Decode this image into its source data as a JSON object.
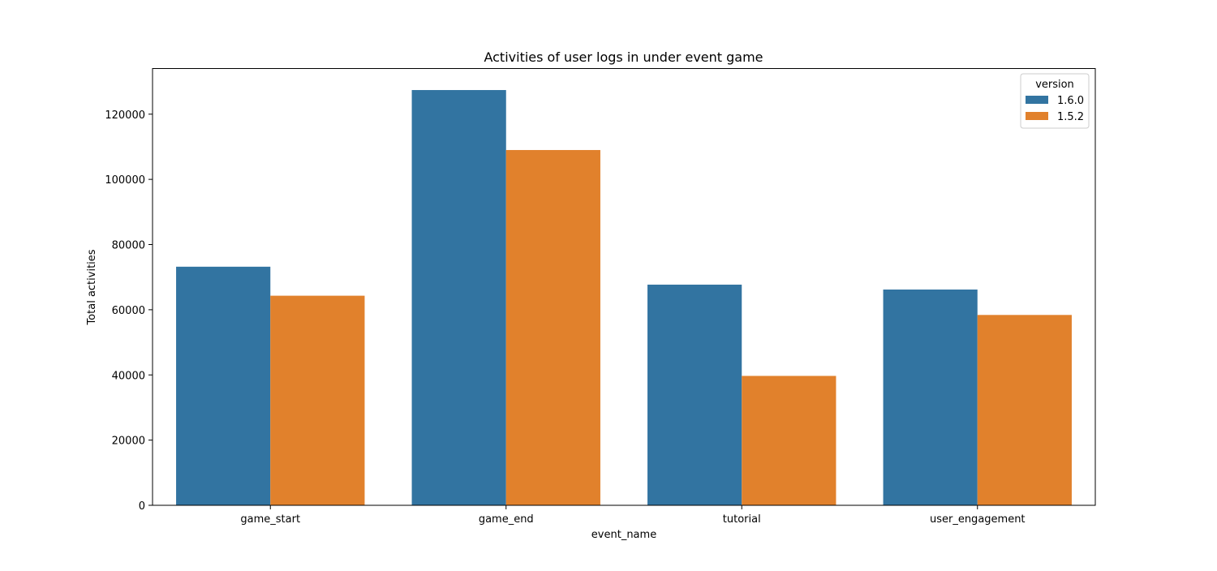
{
  "chart_data": {
    "type": "bar",
    "title": "Activities of user logs in under event game",
    "xlabel": "event_name",
    "ylabel": "Total activities",
    "categories": [
      "game_start",
      "game_end",
      "tutorial",
      "user_engagement"
    ],
    "series": [
      {
        "name": "1.6.0",
        "color": "#3274a1",
        "values": [
          73200,
          127400,
          67700,
          66200
        ]
      },
      {
        "name": "1.5.2",
        "color": "#e1812c",
        "values": [
          64300,
          109000,
          39700,
          58400
        ]
      }
    ],
    "ylim": [
      0,
      134000
    ],
    "yticks": [
      0,
      20000,
      40000,
      60000,
      80000,
      100000,
      120000
    ],
    "ytick_labels": [
      "0",
      "20000",
      "40000",
      "60000",
      "80000",
      "100000",
      "120000"
    ],
    "grid": false,
    "legend": {
      "title": "version",
      "placement": "top-right"
    }
  }
}
